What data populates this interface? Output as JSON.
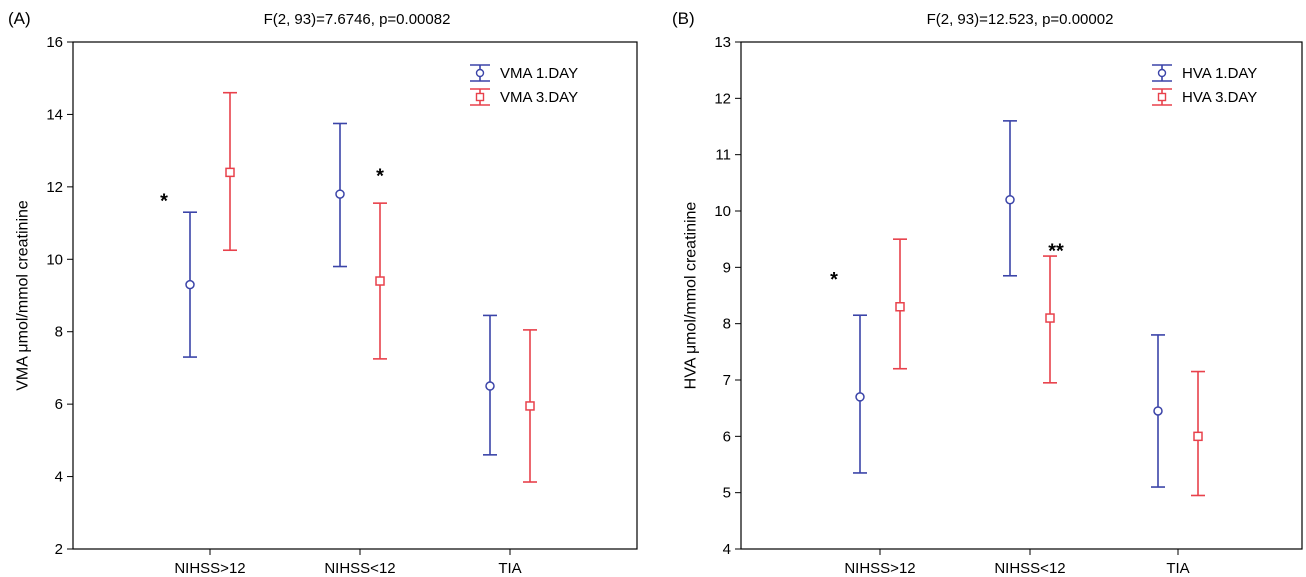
{
  "chart_data": [
    {
      "type": "errorbar",
      "panel_label": "(A)",
      "title": "F(2, 93)=7.6746, p=0.00082",
      "ylabel": "VMA μmol/mmol creatinine",
      "ylim": [
        2,
        16
      ],
      "yticks": [
        2,
        4,
        6,
        8,
        10,
        12,
        14,
        16
      ],
      "categories": [
        "NIHSS>12",
        "NIHSS<12",
        "TIA"
      ],
      "series": [
        {
          "name": "VMA 1.DAY",
          "color": "#3b44a8",
          "marker": "circle",
          "values": [
            9.3,
            11.8,
            6.5
          ],
          "lower": [
            7.3,
            9.8,
            4.6
          ],
          "upper": [
            11.3,
            13.75,
            8.45
          ]
        },
        {
          "name": "VMA 3.DAY",
          "color": "#e8414b",
          "marker": "square",
          "values": [
            12.4,
            9.4,
            5.95
          ],
          "lower": [
            10.25,
            7.25,
            3.85
          ],
          "upper": [
            14.6,
            11.55,
            8.05
          ]
        }
      ],
      "annotations": [
        {
          "text": "*",
          "x": "NIHSS>12",
          "y": 11.7
        },
        {
          "text": "*",
          "x": "NIHSS<12",
          "y": 12.4
        }
      ],
      "legend": "top-right"
    },
    {
      "type": "errorbar",
      "panel_label": "(B)",
      "title": "F(2, 93)=12.523, p=0.00002",
      "ylabel": "HVA μmol/mmol creatinine",
      "ylim": [
        4,
        13
      ],
      "yticks": [
        4,
        5,
        6,
        7,
        8,
        9,
        10,
        11,
        12,
        13
      ],
      "categories": [
        "NIHSS>12",
        "NIHSS<12",
        "TIA"
      ],
      "series": [
        {
          "name": "HVA 1.DAY",
          "color": "#3b44a8",
          "marker": "circle",
          "values": [
            6.7,
            10.2,
            6.45
          ],
          "lower": [
            5.35,
            8.85,
            5.1
          ],
          "upper": [
            8.15,
            11.6,
            7.8
          ]
        },
        {
          "name": "HVA 3.DAY",
          "color": "#e8414b",
          "marker": "square",
          "values": [
            8.3,
            8.1,
            6.0
          ],
          "lower": [
            7.2,
            6.95,
            4.95
          ],
          "upper": [
            9.5,
            9.2,
            7.15
          ]
        }
      ],
      "annotations": [
        {
          "text": "*",
          "x": "NIHSS>12",
          "y": 8.85
        },
        {
          "text": "**",
          "x": "NIHSS<12",
          "y": 9.35
        }
      ],
      "legend": "top-right"
    }
  ]
}
